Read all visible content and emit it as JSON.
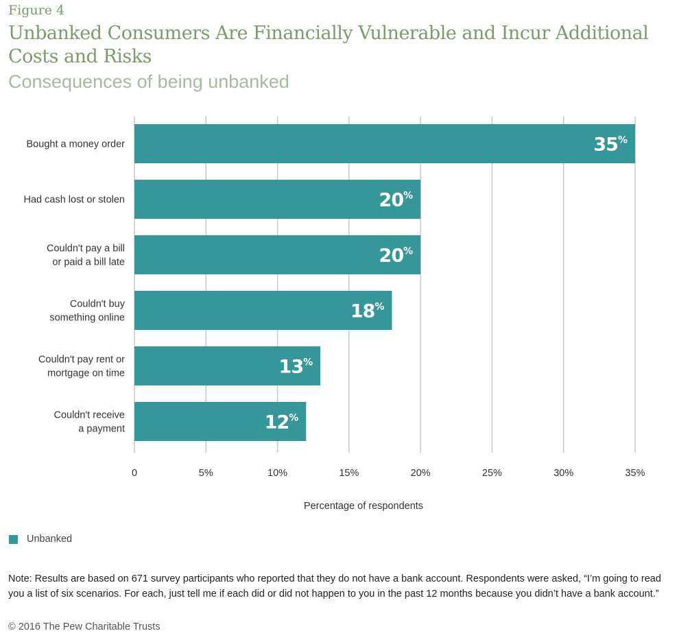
{
  "figure_label": "Figure 4",
  "title": "Unbanked Consumers Are Financially Vulnerable and Incur Additional Costs and Risks",
  "subtitle": "Consequences of being unbanked",
  "chart_data": {
    "type": "bar",
    "orientation": "horizontal",
    "categories": [
      [
        "Bought a money order"
      ],
      [
        "Had cash lost or stolen"
      ],
      [
        "Couldn't pay a bill",
        "or paid a bill late"
      ],
      [
        "Couldn't buy",
        "something online"
      ],
      [
        "Couldn't pay rent or",
        "mortgage on time"
      ],
      [
        "Couldn't receive",
        "a payment"
      ]
    ],
    "series": [
      {
        "name": "Unbanked",
        "values": [
          35,
          20,
          20,
          18,
          13,
          12
        ],
        "color": "#35979a"
      }
    ],
    "data_labels": [
      "35%",
      "20%",
      "20%",
      "18%",
      "13%",
      "12%"
    ],
    "xlabel": "Percentage of respondents",
    "xlim": [
      0,
      35
    ],
    "xticks": [
      "0",
      "5%",
      "10%",
      "15%",
      "20%",
      "25%",
      "30%",
      "35%"
    ],
    "grid": true,
    "legend_position": "bottom-left"
  },
  "legend_label": "Unbanked",
  "note": "Note: Results are based on 671 survey participants who reported that they do not have a bank account. Respondents were asked, “I’m going to read you a list of six scenarios. For each, just tell me if each did or did not happen to you in the past 12 months because you didn’t have a bank account.”",
  "copyright": "© 2016 The Pew Charitable Trusts"
}
